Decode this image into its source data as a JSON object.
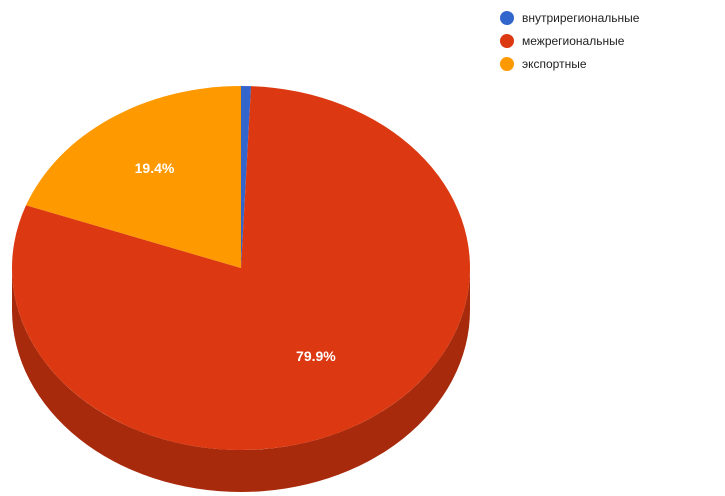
{
  "chart_data": {
    "type": "pie",
    "variant": "3d",
    "title": "",
    "categories": [
      "внутрирегиональные",
      "межрегиональные",
      "экспортные"
    ],
    "values": [
      0.7,
      79.9,
      19.4
    ],
    "value_labels": [
      "",
      "79.9%",
      "19.4%"
    ],
    "colors": [
      "#3366cc",
      "#dc3912",
      "#ff9900"
    ],
    "shadow_colors": [
      "#2a55aa",
      "#a82a0c",
      "#c77700"
    ],
    "legend_position": "top-right",
    "start_angle_deg": 0,
    "direction": "clockwise"
  }
}
